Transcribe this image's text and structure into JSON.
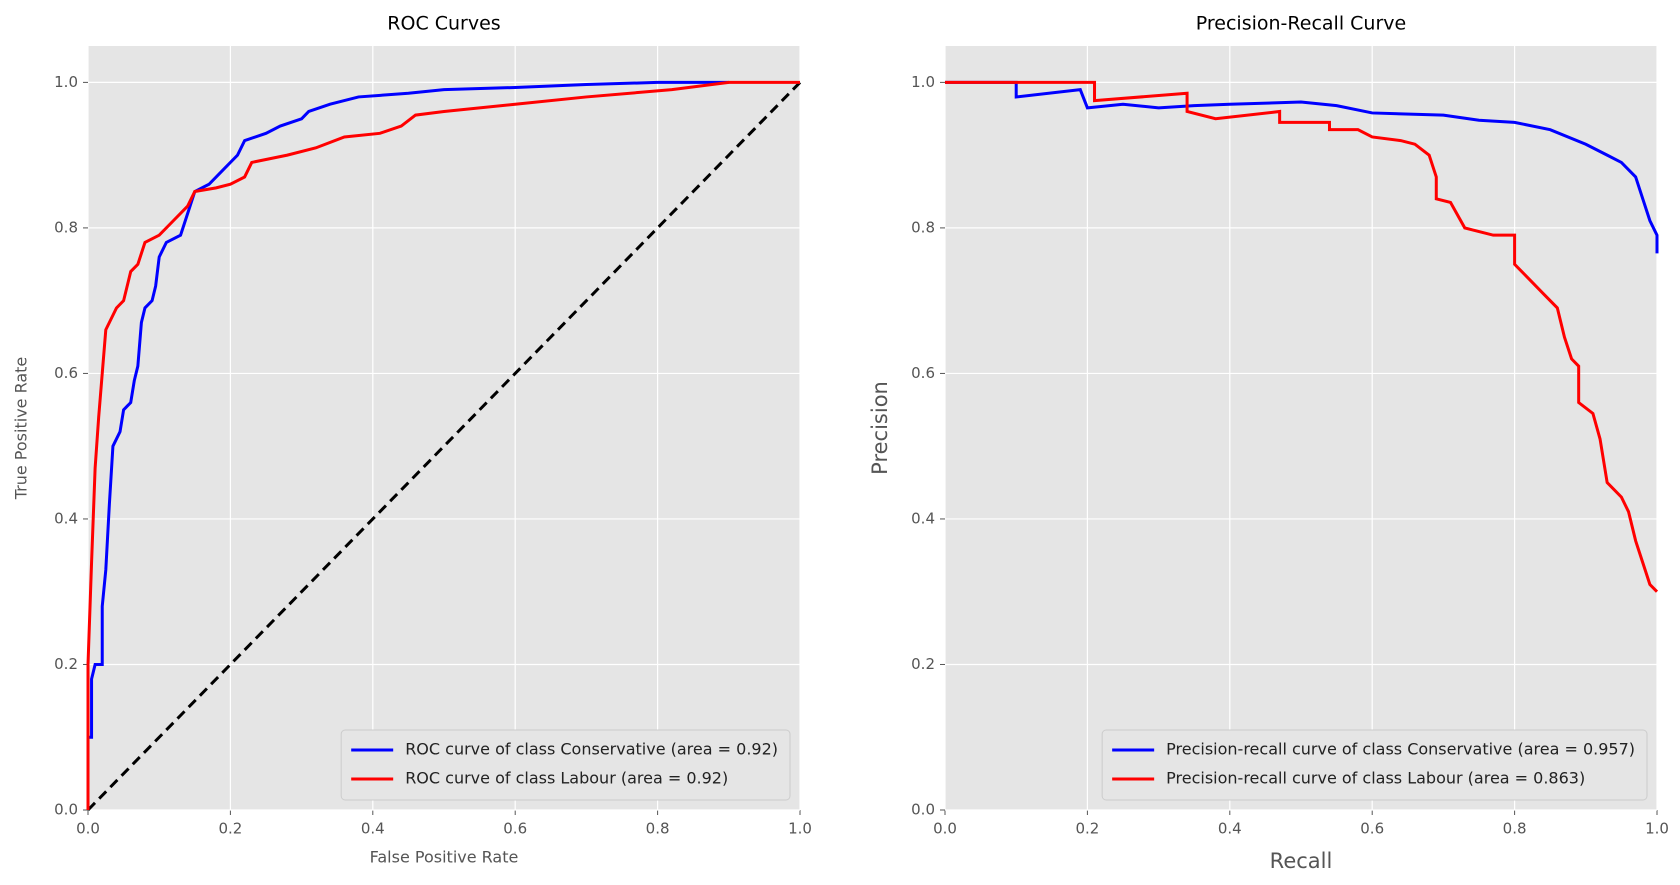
{
  "chart_data": [
    {
      "type": "line",
      "title": "ROC Curves",
      "xlabel": "False Positive Rate",
      "ylabel": "True Positive Rate",
      "xlim": [
        0,
        1
      ],
      "ylim": [
        0,
        1.05
      ],
      "xticks": [
        {
          "value": 0,
          "label": "0.0"
        },
        0.2,
        0.4,
        0.6,
        0.8,
        {
          "value": 1,
          "label": "1.0"
        }
      ],
      "yticks": [
        {
          "value": 0,
          "label": "0.0"
        },
        0.2,
        0.4,
        0.6,
        0.8,
        {
          "value": 1,
          "label": "1.0"
        }
      ],
      "grid": true,
      "legend": "lower right",
      "series": [
        {
          "name": "ROC curve of class Conservative (area = 0.92)",
          "color": "#0000ff",
          "x": [
            0,
            0,
            0.005,
            0.005,
            0.01,
            0.02,
            0.02,
            0.025,
            0.03,
            0.035,
            0.045,
            0.05,
            0.06,
            0.065,
            0.07,
            0.075,
            0.08,
            0.09,
            0.095,
            0.1,
            0.11,
            0.13,
            0.14,
            0.15,
            0.17,
            0.19,
            0.21,
            0.22,
            0.25,
            0.27,
            0.3,
            0.31,
            0.34,
            0.38,
            0.45,
            0.5,
            0.6,
            0.7,
            0.8,
            0.9
          ],
          "values": [
            0,
            0.1,
            0.1,
            0.18,
            0.2,
            0.2,
            0.28,
            0.33,
            0.42,
            0.5,
            0.52,
            0.55,
            0.56,
            0.59,
            0.61,
            0.67,
            0.69,
            0.7,
            0.72,
            0.76,
            0.78,
            0.79,
            0.82,
            0.85,
            0.86,
            0.88,
            0.9,
            0.92,
            0.93,
            0.94,
            0.95,
            0.96,
            0.97,
            0.98,
            0.985,
            0.99,
            0.993,
            0.997,
            1.0,
            1.0
          ]
        },
        {
          "name": "ROC curve of class Labour (area = 0.92)",
          "color": "#ff0000",
          "x": [
            0,
            0,
            0.005,
            0.01,
            0.015,
            0.02,
            0.025,
            0.03,
            0.04,
            0.05,
            0.06,
            0.07,
            0.08,
            0.1,
            0.12,
            0.14,
            0.15,
            0.18,
            0.2,
            0.22,
            0.23,
            0.28,
            0.32,
            0.36,
            0.41,
            0.44,
            0.46,
            0.5,
            0.6,
            0.7,
            0.82,
            0.9,
            1.0
          ],
          "values": [
            0,
            0.2,
            0.34,
            0.47,
            0.54,
            0.6,
            0.66,
            0.67,
            0.69,
            0.7,
            0.74,
            0.75,
            0.78,
            0.79,
            0.81,
            0.83,
            0.85,
            0.855,
            0.86,
            0.87,
            0.89,
            0.9,
            0.91,
            0.925,
            0.93,
            0.94,
            0.955,
            0.96,
            0.97,
            0.98,
            0.99,
            1.0,
            1.0
          ]
        }
      ],
      "diagonal": {
        "x": [
          0,
          1
        ],
        "values": [
          0,
          1
        ],
        "color": "#000000"
      }
    },
    {
      "type": "line",
      "title": "Precision-Recall Curve",
      "xlabel": "Recall",
      "ylabel": "Precision",
      "xlim": [
        0,
        1
      ],
      "ylim": [
        0,
        1.05
      ],
      "xticks": [
        {
          "value": 0,
          "label": "0.0"
        },
        0.2,
        0.4,
        0.6,
        0.8,
        {
          "value": 1,
          "label": "1.0"
        }
      ],
      "yticks": [
        {
          "value": 0,
          "label": "0.0"
        },
        0.2,
        0.4,
        0.6,
        0.8,
        {
          "value": 1,
          "label": "1.0"
        }
      ],
      "grid": true,
      "legend": "lower right",
      "series": [
        {
          "name": "Precision-recall curve of class Conservative (area = 0.957)",
          "color": "#0000ff",
          "x": [
            0,
            0.1,
            0.1,
            0.19,
            0.2,
            0.25,
            0.3,
            0.35,
            0.4,
            0.5,
            0.55,
            0.6,
            0.7,
            0.75,
            0.8,
            0.85,
            0.9,
            0.93,
            0.95,
            0.97,
            0.98,
            0.99,
            1.0,
            1.0
          ],
          "values": [
            1.0,
            1.0,
            0.98,
            0.99,
            0.965,
            0.97,
            0.965,
            0.968,
            0.97,
            0.973,
            0.968,
            0.958,
            0.955,
            0.948,
            0.945,
            0.935,
            0.915,
            0.9,
            0.89,
            0.87,
            0.84,
            0.81,
            0.79,
            0.765
          ]
        },
        {
          "name": "Precision-recall curve of class Labour (area = 0.863)",
          "color": "#ff0000",
          "x": [
            0,
            0.21,
            0.21,
            0.34,
            0.34,
            0.38,
            0.47,
            0.47,
            0.54,
            0.54,
            0.58,
            0.6,
            0.64,
            0.66,
            0.68,
            0.69,
            0.69,
            0.71,
            0.73,
            0.77,
            0.8,
            0.8,
            0.82,
            0.84,
            0.86,
            0.87,
            0.88,
            0.89,
            0.89,
            0.91,
            0.92,
            0.93,
            0.95,
            0.96,
            0.97,
            0.98,
            0.99,
            1.0
          ],
          "values": [
            1.0,
            1.0,
            0.975,
            0.985,
            0.96,
            0.95,
            0.96,
            0.945,
            0.945,
            0.935,
            0.935,
            0.925,
            0.92,
            0.915,
            0.9,
            0.87,
            0.84,
            0.835,
            0.8,
            0.79,
            0.79,
            0.75,
            0.73,
            0.71,
            0.69,
            0.65,
            0.62,
            0.61,
            0.56,
            0.545,
            0.51,
            0.45,
            0.43,
            0.41,
            0.37,
            0.34,
            0.31,
            0.3
          ]
        }
      ]
    }
  ]
}
